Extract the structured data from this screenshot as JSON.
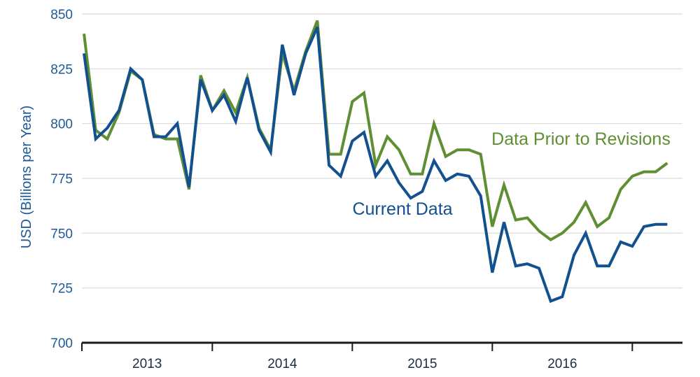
{
  "chart_data": {
    "type": "line",
    "title": "",
    "ylabel": "USD (Billions per Year)",
    "xlabel": "",
    "ylim": [
      700,
      850
    ],
    "y_ticks": [
      700,
      725,
      750,
      775,
      800,
      825,
      850
    ],
    "x_tick_labels": [
      "2013",
      "2014",
      "2015",
      "2016"
    ],
    "x_range_months": [
      0,
      51
    ],
    "grid": "horizontal",
    "colors": {
      "current": "#12508f",
      "prior": "#5e8f33",
      "axis": "#1a1a1a",
      "grid": "#d9d9d9"
    },
    "series": [
      {
        "name": "Current Data",
        "key": "current",
        "x": [
          0,
          1,
          2,
          3,
          4,
          5,
          6,
          7,
          8,
          9,
          10,
          11,
          12,
          13,
          14,
          15,
          16,
          17,
          18,
          19,
          20,
          21,
          22,
          23,
          24,
          25,
          26,
          27,
          28,
          29,
          30,
          31,
          32,
          33,
          34,
          35,
          36,
          37,
          38,
          39,
          40,
          41,
          42,
          43,
          44,
          45,
          46,
          47,
          48,
          49,
          50
        ],
        "values": [
          832,
          793,
          798,
          806,
          825,
          820,
          794,
          794,
          800,
          771,
          820,
          806,
          813,
          801,
          821,
          797,
          787,
          836,
          813,
          832,
          844,
          781,
          776,
          792,
          796,
          776,
          783,
          773,
          766,
          769,
          783,
          774,
          777,
          776,
          767,
          732,
          755,
          735,
          736,
          734,
          719,
          721,
          740,
          750,
          735,
          735,
          746,
          744,
          753,
          754,
          754
        ]
      },
      {
        "name": "Data Prior to Revisions",
        "key": "prior",
        "x": [
          0,
          1,
          2,
          3,
          4,
          5,
          6,
          7,
          8,
          9,
          10,
          11,
          12,
          13,
          14,
          15,
          16,
          17,
          18,
          19,
          20,
          21,
          22,
          23,
          24,
          25,
          26,
          27,
          28,
          29,
          30,
          31,
          32,
          33,
          34,
          35,
          36,
          37,
          38,
          39,
          40,
          41,
          42,
          43,
          44,
          45,
          46,
          47,
          48,
          49,
          50
        ],
        "values": [
          841,
          797,
          793,
          805,
          824,
          820,
          795,
          793,
          793,
          770,
          822,
          806,
          815,
          805,
          821,
          798,
          788,
          832,
          815,
          833,
          847,
          786,
          786,
          810,
          814,
          781,
          794,
          788,
          777,
          777,
          800,
          785,
          788,
          788,
          786,
          753,
          772,
          756,
          757,
          751,
          747,
          750,
          755,
          764,
          753,
          757,
          770,
          776,
          778,
          778,
          782
        ]
      }
    ]
  }
}
